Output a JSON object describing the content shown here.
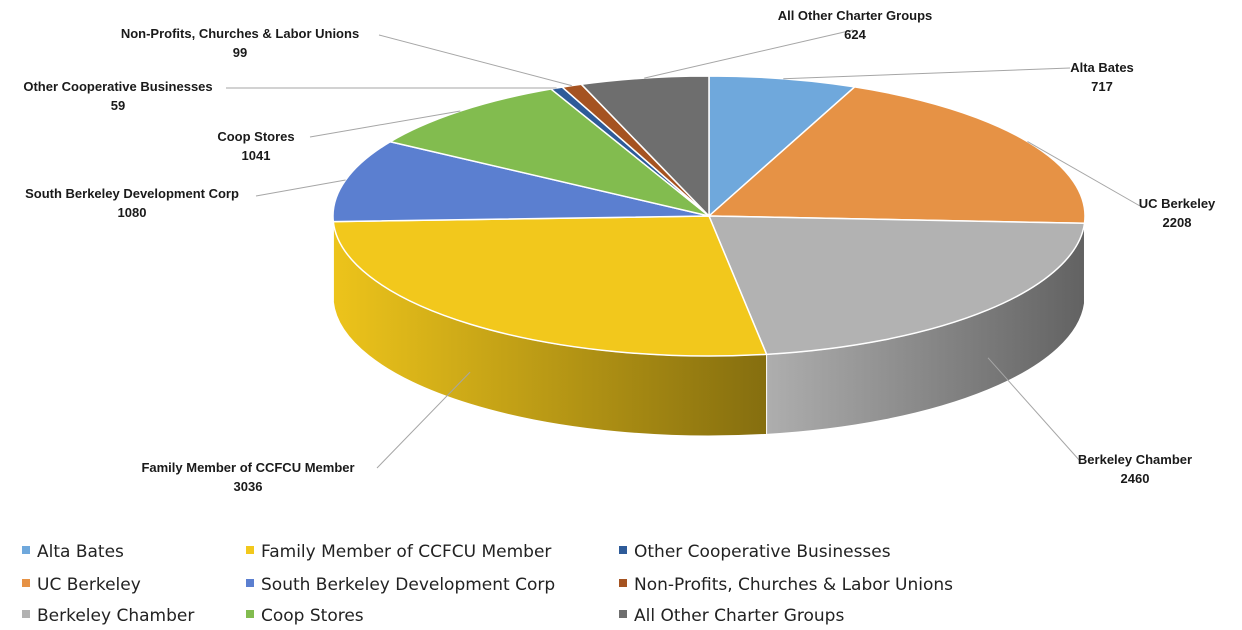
{
  "chart_data": {
    "type": "pie",
    "variant": "3d",
    "start_angle_deg": 0,
    "direction": "clockwise",
    "legend_position": "bottom",
    "categories": [
      "Alta Bates",
      "UC Berkeley",
      "Berkeley Chamber",
      "Family Member of CCFCU Member",
      "South Berkeley Development Corp",
      "Coop Stores",
      "Other Cooperative Businesses",
      "Non-Profits, Churches & Labor Unions",
      "All Other Charter Groups"
    ],
    "values": [
      717,
      2208,
      2460,
      3036,
      1080,
      1041,
      59,
      99,
      624
    ],
    "colors": [
      "#6fa8dc",
      "#e69245",
      "#b2b2b2",
      "#f2c81c",
      "#5b7fd0",
      "#82bc4f",
      "#2e5b99",
      "#a55321",
      "#6e6e6e"
    ]
  }
}
